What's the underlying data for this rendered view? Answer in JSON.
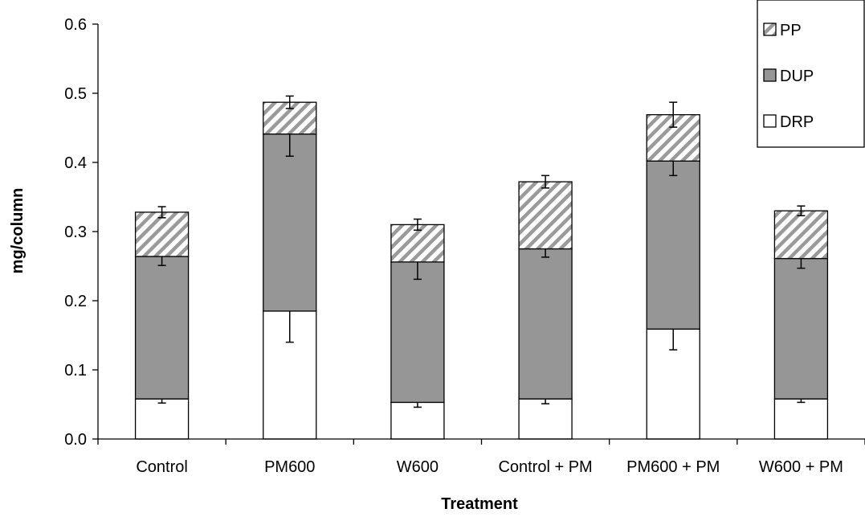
{
  "chart_data": {
    "type": "bar",
    "stacked": true,
    "title": "",
    "xlabel": "Treatment",
    "ylabel": "mg/column",
    "ylim": [
      0,
      0.6
    ],
    "yticks": [
      "0.0",
      "0.1",
      "0.2",
      "0.3",
      "0.4",
      "0.5",
      "0.6"
    ],
    "categories": [
      "Control",
      "PM600",
      "W600",
      "Control + PM",
      "PM600 + PM",
      "W600 + PM"
    ],
    "series": [
      {
        "name": "DRP",
        "fill": "#ffffff",
        "pattern": "none",
        "values": [
          0.058,
          0.185,
          0.053,
          0.058,
          0.159,
          0.058
        ],
        "errors": [
          0.006,
          0.045,
          0.007,
          0.007,
          0.03,
          0.005
        ]
      },
      {
        "name": "DUP",
        "fill": "#969696",
        "pattern": "none",
        "values": [
          0.206,
          0.256,
          0.203,
          0.217,
          0.243,
          0.203
        ],
        "errors": [
          0.013,
          0.032,
          0.025,
          0.012,
          0.021,
          0.014
        ]
      },
      {
        "name": "PP",
        "fill": "#ffffff",
        "pattern": "hatch",
        "values": [
          0.064,
          0.046,
          0.054,
          0.097,
          0.067,
          0.069
        ],
        "errors": [
          0.008,
          0.009,
          0.008,
          0.009,
          0.018,
          0.007
        ]
      }
    ],
    "legend": {
      "position": "top-right",
      "order": [
        "PP",
        "DUP",
        "DRP"
      ]
    },
    "grid": false
  }
}
